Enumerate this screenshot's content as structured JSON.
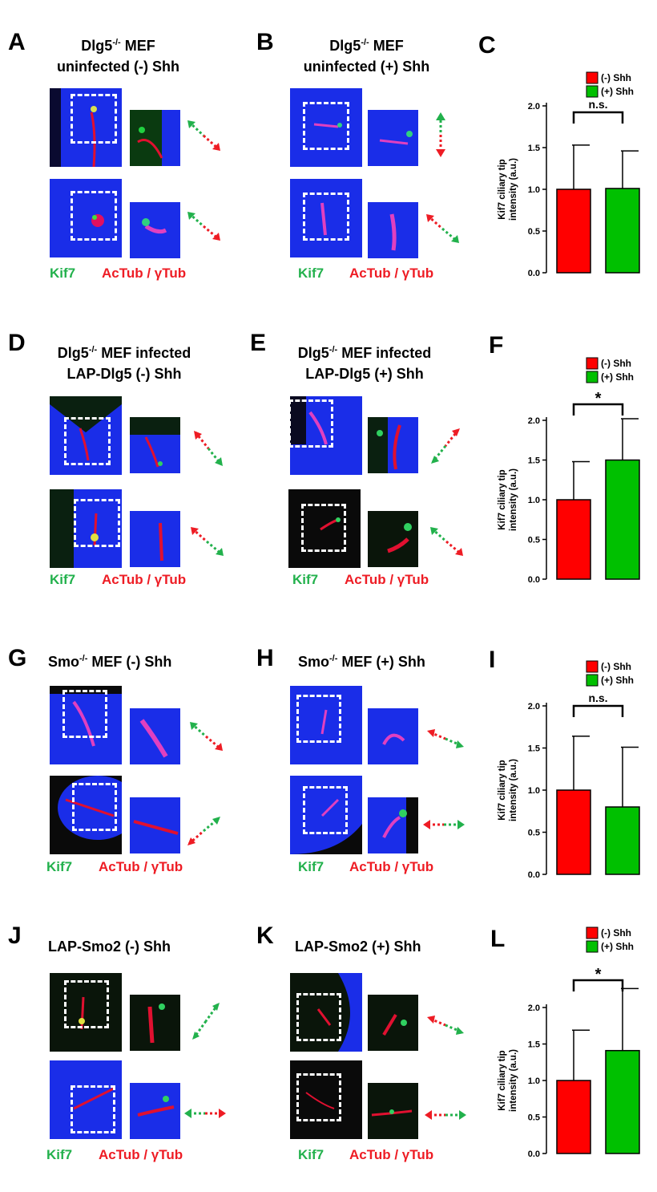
{
  "colors": {
    "minus": "#ff0000",
    "plus": "#00c000",
    "blue": "#1a2de8",
    "black": "#0a0a0a",
    "label_green": "#22b14c",
    "label_red": "#ee1c24"
  },
  "channel_labels": {
    "green": "Kif7",
    "red": "AcTub / γTub"
  },
  "rows": [
    {
      "panels": [
        {
          "letter": "A",
          "title_l1": "Dlg5",
          "title_sup": "-/-",
          "title_l1_rest": " MEF",
          "title_l2": "uninfected (-) Shh"
        },
        {
          "letter": "B",
          "title_l1": "Dlg5",
          "title_sup": "-/-",
          "title_l1_rest": " MEF",
          "title_l2": "uninfected (+) Shh"
        },
        {
          "letter": "C"
        }
      ]
    },
    {
      "panels": [
        {
          "letter": "D",
          "title_l1": "Dlg5",
          "title_sup": "-/-",
          "title_l1_rest": " MEF infected",
          "title_l2": "LAP-Dlg5 (-) Shh"
        },
        {
          "letter": "E",
          "title_l1": "Dlg5",
          "title_sup": "-/-",
          "title_l1_rest": " MEF infected",
          "title_l2": "LAP-Dlg5 (+) Shh"
        },
        {
          "letter": "F"
        }
      ]
    },
    {
      "panels": [
        {
          "letter": "G",
          "title_l1": "Smo",
          "title_sup": "-/-",
          "title_l1_rest": " MEF (-) Shh"
        },
        {
          "letter": "H",
          "title_l1": "Smo",
          "title_sup": "-/-",
          "title_l1_rest": " MEF (+) Shh"
        },
        {
          "letter": "I"
        }
      ]
    },
    {
      "panels": [
        {
          "letter": "J",
          "title_l1": "LAP-Smo2 (-) Shh"
        },
        {
          "letter": "K",
          "title_l1": "LAP-Smo2 (+) Shh"
        },
        {
          "letter": "L"
        }
      ]
    }
  ],
  "chart_data": [
    {
      "panel": "C",
      "type": "bar",
      "categories": [
        "(-)  Shh",
        "(+) Shh"
      ],
      "values": [
        1.0,
        1.01
      ],
      "errors": [
        0.53,
        0.45
      ],
      "ylabel_l1": "Kif7 ciliary tip",
      "ylabel_l2": "intensity (a.u.)",
      "ylim": [
        0,
        2.0
      ],
      "yticks": [
        "0.0",
        "0.5",
        "1.0",
        "1.5",
        "2.0"
      ],
      "significance": "n.s.",
      "legend": [
        "(-)  Shh",
        "(+) Shh"
      ]
    },
    {
      "panel": "F",
      "type": "bar",
      "categories": [
        "(-)  Shh",
        "(+) Shh"
      ],
      "values": [
        1.0,
        1.5
      ],
      "errors": [
        0.48,
        0.52
      ],
      "ylabel_l1": "Kif7 ciliary tip",
      "ylabel_l2": "intensity (a.u.)",
      "ylim": [
        0,
        2.0
      ],
      "yticks": [
        "0.0",
        "0.5",
        "1.0",
        "1.5",
        "2.0"
      ],
      "significance": "*",
      "legend": [
        "(-)  Shh",
        "(+) Shh"
      ]
    },
    {
      "panel": "I",
      "type": "bar",
      "categories": [
        "(-)  Shh",
        "(+) Shh"
      ],
      "values": [
        1.0,
        0.8
      ],
      "errors": [
        0.64,
        0.71
      ],
      "ylabel_l1": "Kif7 ciliary tip",
      "ylabel_l2": "intensity (a.u.)",
      "ylim": [
        0,
        2.0
      ],
      "yticks": [
        "0.0",
        "0.5",
        "1.0",
        "1.5",
        "2.0"
      ],
      "significance": "n.s.",
      "legend": [
        "(-)  Shh",
        "(+) Shh"
      ]
    },
    {
      "panel": "L",
      "type": "bar",
      "categories": [
        "(-)  Shh",
        "(+) Shh"
      ],
      "values": [
        1.0,
        1.41
      ],
      "errors": [
        0.69,
        0.85
      ],
      "ylabel_l1": "Kif7 ciliary tip",
      "ylabel_l2": "intensity (a.u.)",
      "ylim": [
        0,
        2.0
      ],
      "yticks": [
        "0.0",
        "0.5",
        "1.0",
        "1.5",
        "2.0"
      ],
      "significance": "*",
      "legend": [
        "(-)  Shh",
        "(+) Shh"
      ]
    }
  ]
}
